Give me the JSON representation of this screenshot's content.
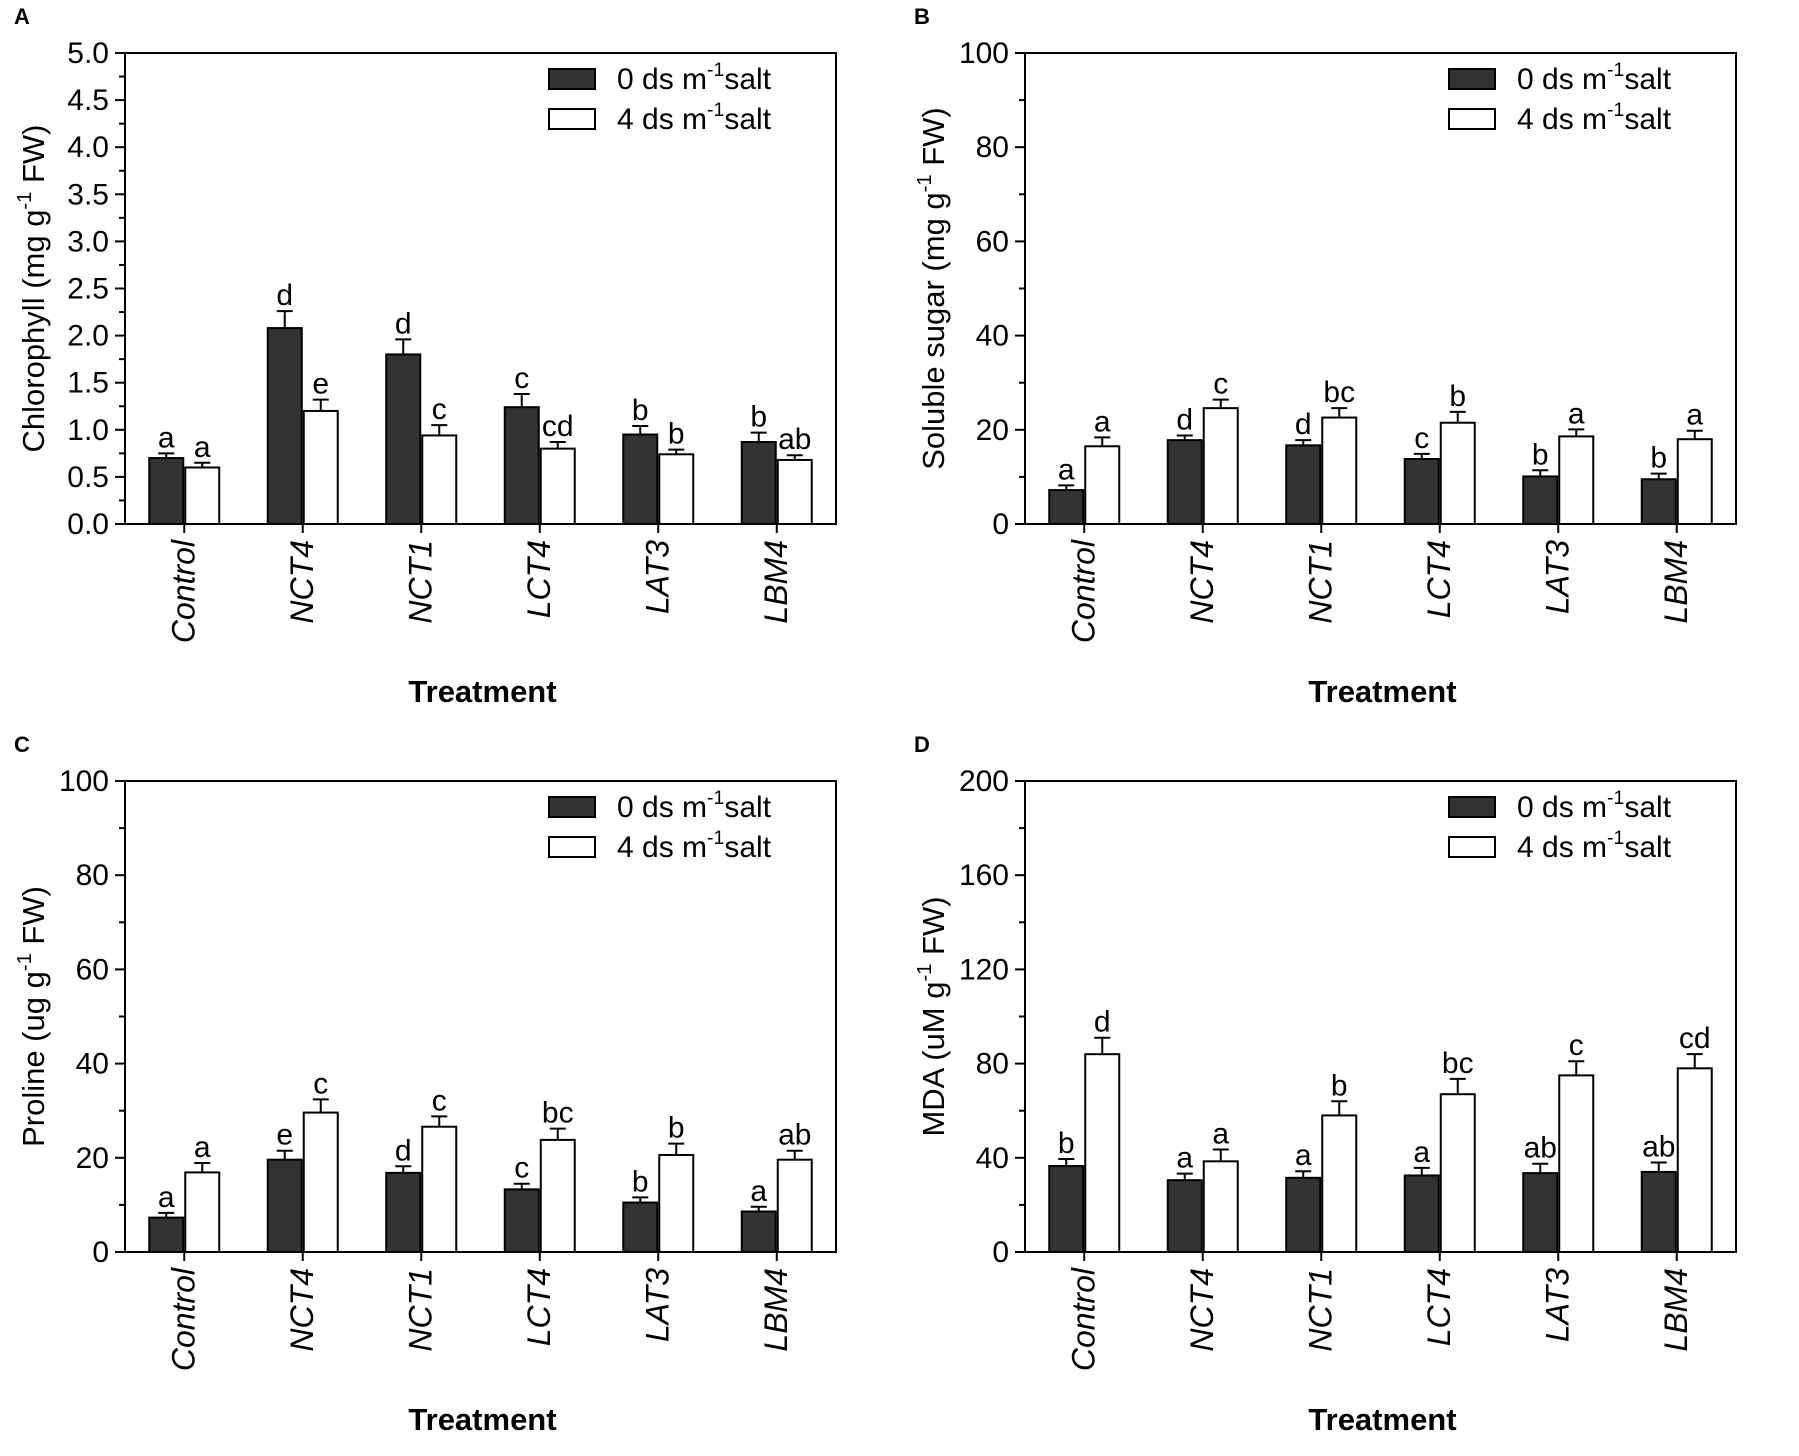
{
  "legend": {
    "series0": {
      "prefix": "0 ds m",
      "sup": "-1",
      "suffix": "salt"
    },
    "series1": {
      "prefix": "4 ds m",
      "sup": "-1",
      "suffix": "salt"
    }
  },
  "colors": {
    "series0": "#333333",
    "series1": "#ffffff",
    "stroke": "#000000"
  },
  "chart_data": [
    {
      "panel": "A",
      "type": "bar",
      "xlabel": "Treatment",
      "ylabel": {
        "prefix": "Chlorophyll (mg g",
        "sup": "-1",
        "suffix": " FW)"
      },
      "ylim": [
        0,
        5
      ],
      "yticks": [
        0,
        0.5,
        1,
        1.5,
        2,
        2.5,
        3,
        3.5,
        4,
        4.5,
        5
      ],
      "ytick_labels": [
        "0.0",
        "0.5",
        "1.0",
        "1.5",
        "2.0",
        "2.5",
        "3.0",
        "3.5",
        "4.0",
        "4.5",
        "5.0"
      ],
      "categories": [
        "Control",
        "NCT4",
        "NCT1",
        "LCT4",
        "LAT3",
        "LBM4"
      ],
      "series": [
        {
          "name": "0 ds m-1 salt",
          "values": [
            0.7,
            2.08,
            1.8,
            1.24,
            0.95,
            0.87
          ],
          "errors": [
            0.05,
            0.18,
            0.16,
            0.14,
            0.09,
            0.1
          ],
          "labels": [
            "a",
            "d",
            "d",
            "c",
            "b",
            "b"
          ]
        },
        {
          "name": "4 ds m-1 salt",
          "values": [
            0.6,
            1.2,
            0.94,
            0.8,
            0.74,
            0.68
          ],
          "errors": [
            0.05,
            0.12,
            0.11,
            0.07,
            0.05,
            0.05
          ],
          "labels": [
            "a",
            "e",
            "c",
            "cd",
            "b",
            "ab"
          ]
        }
      ]
    },
    {
      "panel": "B",
      "type": "bar",
      "xlabel": "Treatment",
      "ylabel": {
        "prefix": "Soluble sugar (mg g",
        "sup": "-1",
        "suffix": " FW)"
      },
      "ylim": [
        0,
        100
      ],
      "yticks": [
        0,
        20,
        40,
        60,
        80,
        100
      ],
      "ytick_labels": [
        "0",
        "20",
        "40",
        "60",
        "80",
        "100"
      ],
      "categories": [
        "Control",
        "NCT4",
        "NCT1",
        "LCT4",
        "LAT3",
        "LBM4"
      ],
      "series": [
        {
          "name": "0 ds m-1 salt",
          "values": [
            7.2,
            17.8,
            16.7,
            13.8,
            10.1,
            9.5
          ],
          "errors": [
            1.0,
            1.0,
            1.1,
            1.1,
            1.3,
            1.2
          ],
          "labels": [
            "a",
            "d",
            "d",
            "c",
            "b",
            "b"
          ]
        },
        {
          "name": "4 ds m-1 salt",
          "values": [
            16.5,
            24.6,
            22.6,
            21.5,
            18.6,
            18.0
          ],
          "errors": [
            1.9,
            1.8,
            2.0,
            2.3,
            1.5,
            1.8
          ],
          "labels": [
            "a",
            "c",
            "bc",
            "b",
            "a",
            "a"
          ]
        }
      ]
    },
    {
      "panel": "C",
      "type": "bar",
      "xlabel": "Treatment",
      "ylabel": {
        "prefix": "Proline (ug g",
        "sup": "-1",
        "suffix": " FW)"
      },
      "ylim": [
        0,
        100
      ],
      "yticks": [
        0,
        20,
        40,
        60,
        80,
        100
      ],
      "ytick_labels": [
        "0",
        "20",
        "40",
        "60",
        "80",
        "100"
      ],
      "categories": [
        "Control",
        "NCT4",
        "NCT1",
        "LCT4",
        "LAT3",
        "LBM4"
      ],
      "series": [
        {
          "name": "0 ds m-1 salt",
          "values": [
            7.3,
            19.6,
            16.8,
            13.3,
            10.5,
            8.6
          ],
          "errors": [
            1.0,
            1.9,
            1.4,
            1.2,
            1.1,
            1.0
          ],
          "labels": [
            "a",
            "e",
            "d",
            "c",
            "b",
            "a"
          ]
        },
        {
          "name": "4 ds m-1 salt",
          "values": [
            16.9,
            29.6,
            26.6,
            23.8,
            20.6,
            19.6
          ],
          "errors": [
            2.0,
            2.8,
            2.2,
            2.4,
            2.4,
            1.9
          ],
          "labels": [
            "a",
            "c",
            "c",
            "bc",
            "b",
            "ab"
          ]
        }
      ]
    },
    {
      "panel": "D",
      "type": "bar",
      "xlabel": "Treatment",
      "ylabel": {
        "prefix": "MDA (uM g",
        "sup": "-1",
        "suffix": " FW)"
      },
      "ylim": [
        0,
        200
      ],
      "yticks": [
        0,
        40,
        80,
        120,
        160,
        200
      ],
      "ytick_labels": [
        "0",
        "40",
        "80",
        "120",
        "160",
        "200"
      ],
      "categories": [
        "Control",
        "NCT4",
        "NCT1",
        "LCT4",
        "LAT3",
        "LBM4"
      ],
      "series": [
        {
          "name": "0 ds m-1 salt",
          "values": [
            36.5,
            30.5,
            31.5,
            32.5,
            33.5,
            34.0
          ],
          "errors": [
            3.0,
            2.8,
            2.8,
            3.2,
            4.0,
            4.0
          ],
          "labels": [
            "b",
            "a",
            "a",
            "a",
            "ab",
            "ab"
          ]
        },
        {
          "name": "4 ds m-1 salt",
          "values": [
            84.0,
            38.5,
            58.0,
            67.0,
            75.0,
            78.0
          ],
          "errors": [
            7.0,
            5.0,
            6.0,
            6.5,
            6.0,
            6.0
          ],
          "labels": [
            "d",
            "a",
            "b",
            "bc",
            "c",
            "cd"
          ]
        }
      ]
    }
  ]
}
